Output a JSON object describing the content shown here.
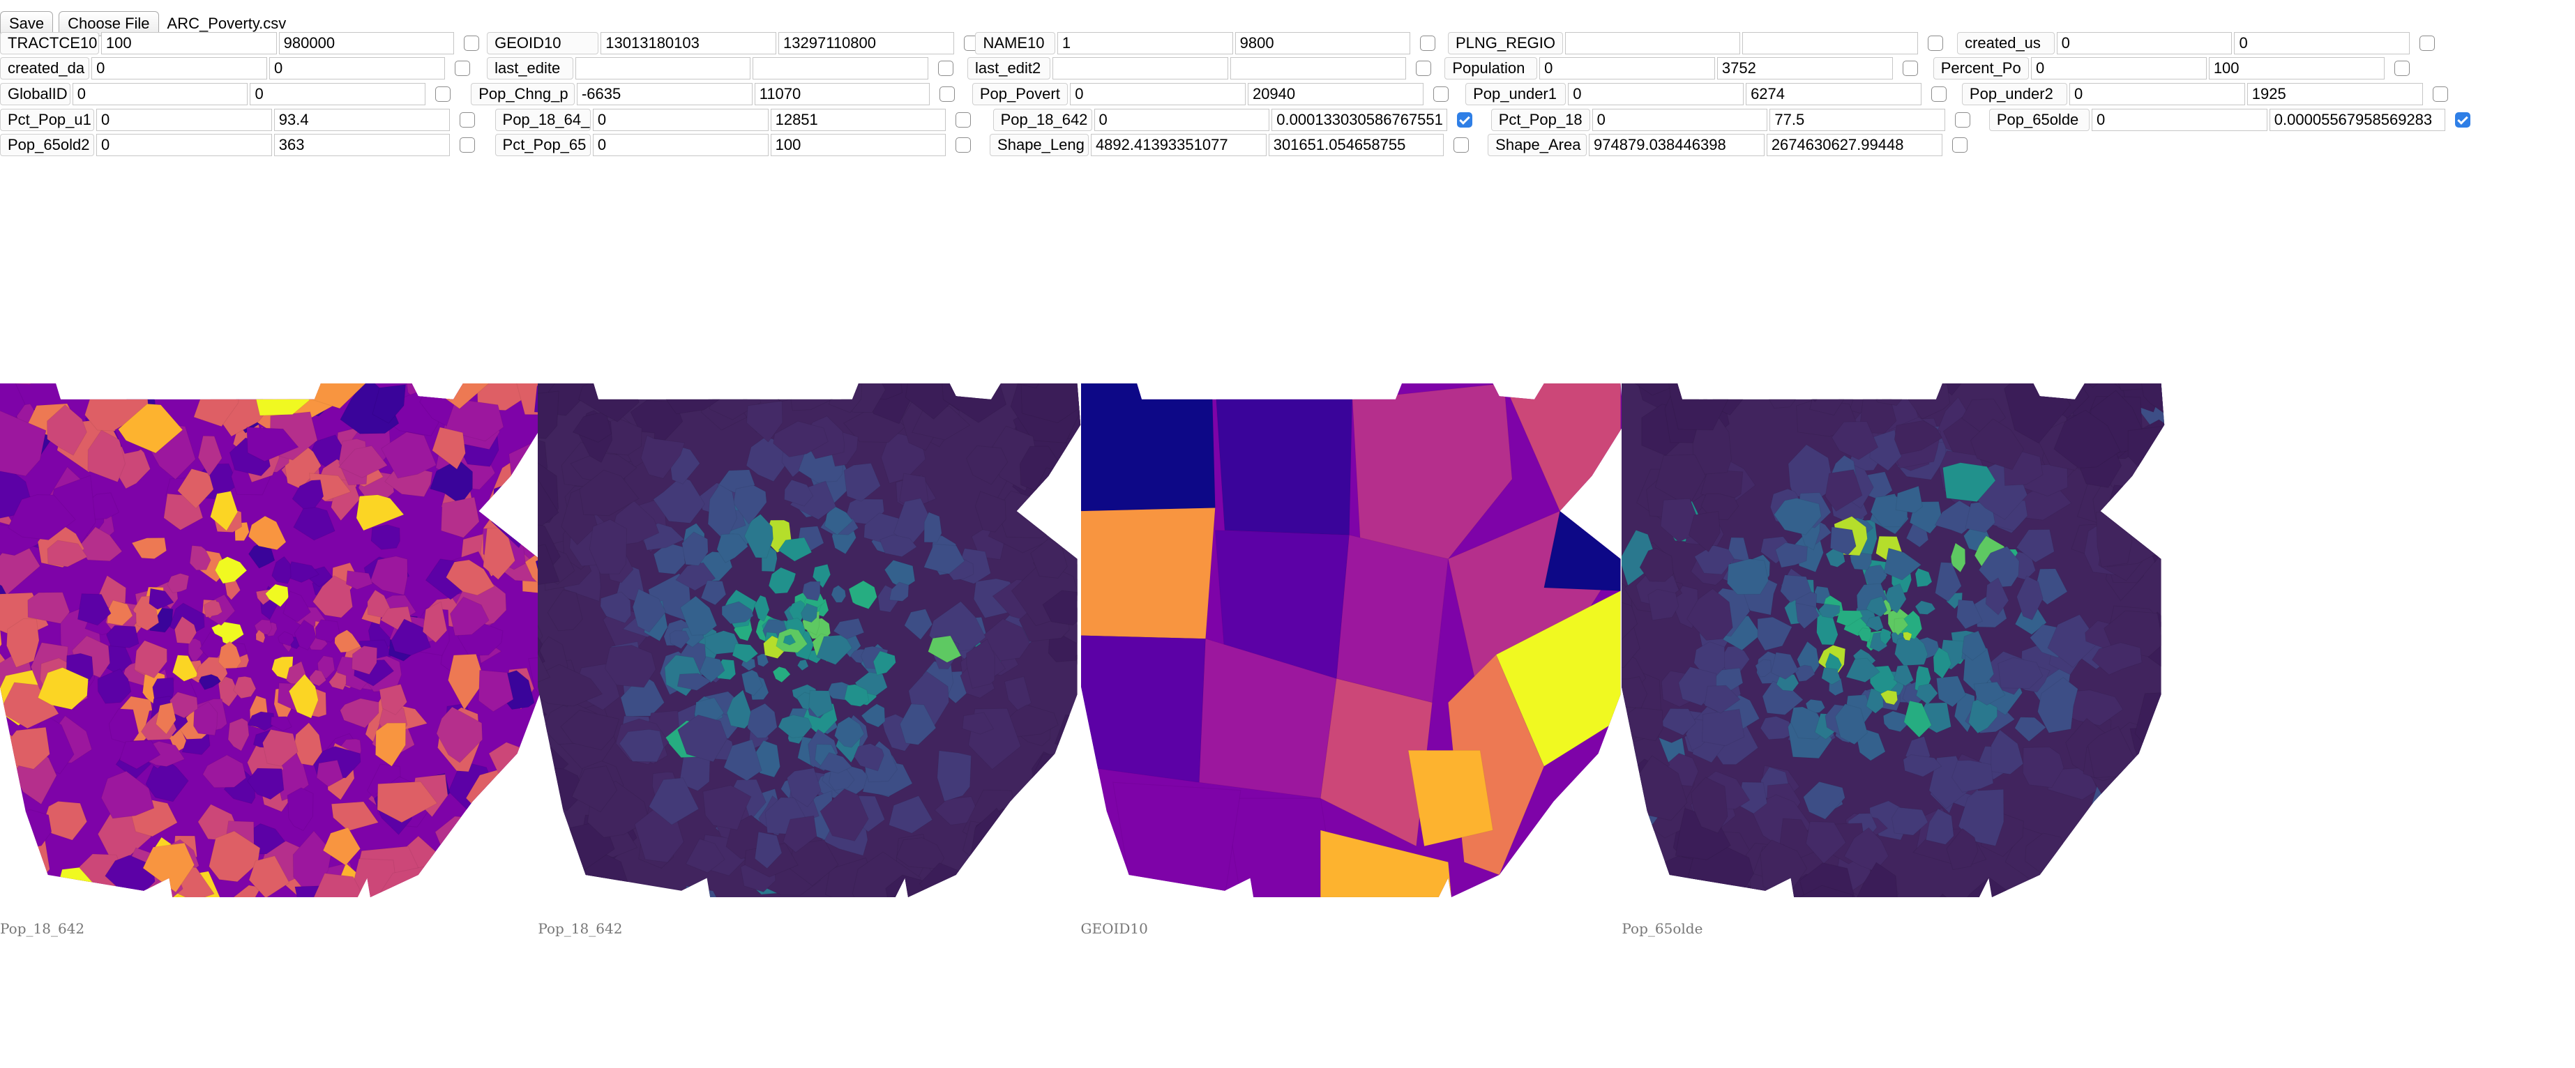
{
  "toolbar": {
    "save_label": "Save",
    "choose_file_label": "Choose File",
    "file_name": "ARC_Poverty.csv"
  },
  "fields": [
    {
      "label": "TRACTCE10",
      "min": "100",
      "max": "980000",
      "checked": false
    },
    {
      "label": "GEOID10",
      "min": "13013180103",
      "max": "13297110800",
      "checked": false
    },
    {
      "label": "NAME10",
      "min": "1",
      "max": "9800",
      "checked": false
    },
    {
      "label": "PLNG_REGIO",
      "min": "",
      "max": "",
      "checked": false
    },
    {
      "label": "created_us",
      "min": "0",
      "max": "0",
      "checked": false
    },
    {
      "label": "created_da",
      "min": "0",
      "max": "0",
      "checked": false
    },
    {
      "label": "last_edite",
      "min": "",
      "max": "",
      "checked": false
    },
    {
      "label": "last_edit2",
      "min": "",
      "max": "",
      "checked": false
    },
    {
      "label": "Population",
      "min": "0",
      "max": "3752",
      "checked": false
    },
    {
      "label": "Percent_Po",
      "min": "0",
      "max": "100",
      "checked": false
    },
    {
      "label": "GlobalID",
      "min": "0",
      "max": "0",
      "checked": false
    },
    {
      "label": "Pop_Chng_p",
      "min": "-6635",
      "max": "11070",
      "checked": false
    },
    {
      "label": "Pop_Povert",
      "min": "0",
      "max": "20940",
      "checked": false
    },
    {
      "label": "Pop_under1",
      "min": "0",
      "max": "6274",
      "checked": false
    },
    {
      "label": "Pop_under2",
      "min": "0",
      "max": "1925",
      "checked": false
    },
    {
      "label": "Pct_Pop_u1",
      "min": "0",
      "max": "93.4",
      "checked": false
    },
    {
      "label": "Pop_18_64_",
      "min": "0",
      "max": "12851",
      "checked": false
    },
    {
      "label": "Pop_18_642",
      "min": "0",
      "max": "0.000133030586767551",
      "checked": true
    },
    {
      "label": "Pct_Pop_18",
      "min": "0",
      "max": "77.5",
      "checked": false
    },
    {
      "label": "Pop_65olde",
      "min": "0",
      "max": "0.00005567958569283",
      "checked": true
    },
    {
      "label": "Pop_65old2",
      "min": "0",
      "max": "363",
      "checked": false
    },
    {
      "label": "Pct_Pop_65",
      "min": "0",
      "max": "100",
      "checked": false
    },
    {
      "label": "Shape_Leng",
      "min": "4892.41393351077",
      "max": "301651.054658755",
      "checked": false
    },
    {
      "label": "Shape_Area",
      "min": "974879.038446398",
      "max": "2674630627.99448",
      "checked": false
    }
  ],
  "maps": [
    {
      "caption": "Pop_18_642",
      "palette": "plasma"
    },
    {
      "caption": "Pop_18_642",
      "palette": "viridis"
    },
    {
      "caption": "GEOID10",
      "palette": "plasma"
    },
    {
      "caption": "Pop_65olde",
      "palette": "viridis"
    }
  ],
  "colors": {
    "plasma": [
      "#0d0887",
      "#3a049a",
      "#5c01a6",
      "#7e03a8",
      "#9c179e",
      "#b52f8c",
      "#cc4778",
      "#de5f65",
      "#ed7953",
      "#f89540",
      "#fdb32f",
      "#fbd524",
      "#f0f921"
    ],
    "viridis": [
      "#3b1d58",
      "#41245e",
      "#442a67",
      "#433a78",
      "#3d4e86",
      "#34618d",
      "#2a788e",
      "#21918c",
      "#26ad81",
      "#5ec962",
      "#b5de2b"
    ],
    "checkbox_accent": "#2f7fe6"
  }
}
